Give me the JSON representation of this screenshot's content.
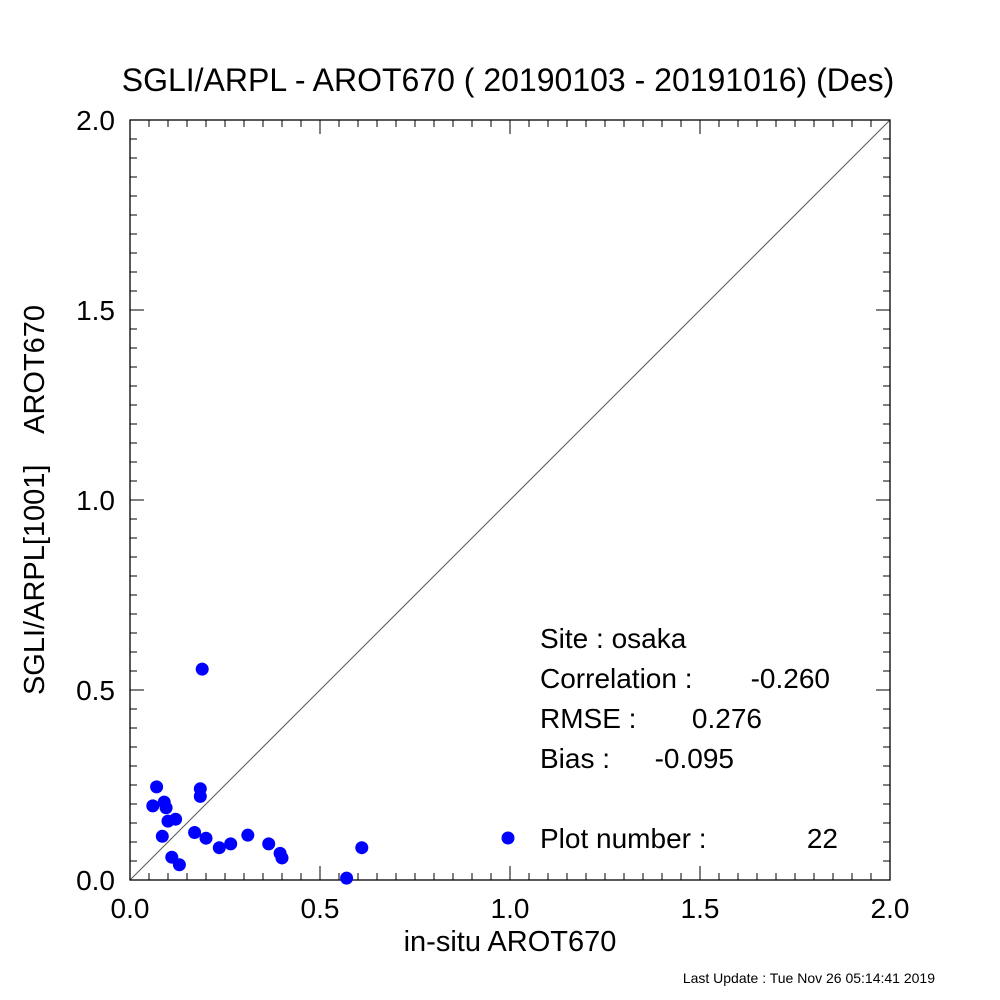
{
  "chart_data": {
    "type": "scatter",
    "title": "SGLI/ARPL - AROT670 ( 20190103 - 20191016) (Des)",
    "xlabel": "in-situ AROT670",
    "ylabel": "SGLI/ARPL[1001]    AROT670",
    "xlim": [
      0.0,
      2.0
    ],
    "ylim": [
      0.0,
      2.0
    ],
    "x_ticks": [
      "0.0",
      "0.5",
      "1.0",
      "1.5",
      "2.0"
    ],
    "y_ticks": [
      "0.0",
      "0.5",
      "1.0",
      "1.5",
      "2.0"
    ],
    "grid": false,
    "reference_line": "1:1",
    "marker_color": "#0000ff",
    "series": [
      {
        "points": [
          {
            "x": 0.06,
            "y": 0.195
          },
          {
            "x": 0.07,
            "y": 0.245
          },
          {
            "x": 0.09,
            "y": 0.205
          },
          {
            "x": 0.095,
            "y": 0.19
          },
          {
            "x": 0.085,
            "y": 0.115
          },
          {
            "x": 0.1,
            "y": 0.155
          },
          {
            "x": 0.12,
            "y": 0.16
          },
          {
            "x": 0.11,
            "y": 0.06
          },
          {
            "x": 0.13,
            "y": 0.04
          },
          {
            "x": 0.17,
            "y": 0.125
          },
          {
            "x": 0.185,
            "y": 0.24
          },
          {
            "x": 0.185,
            "y": 0.22
          },
          {
            "x": 0.19,
            "y": 0.555
          },
          {
            "x": 0.2,
            "y": 0.11
          },
          {
            "x": 0.235,
            "y": 0.085
          },
          {
            "x": 0.265,
            "y": 0.095
          },
          {
            "x": 0.31,
            "y": 0.118
          },
          {
            "x": 0.365,
            "y": 0.095
          },
          {
            "x": 0.395,
            "y": 0.07
          },
          {
            "x": 0.4,
            "y": 0.058
          },
          {
            "x": 0.61,
            "y": 0.085
          },
          {
            "x": 0.57,
            "y": 0.005
          }
        ]
      }
    ],
    "annotations": {
      "site": "Site : osaka",
      "correlation_label": "Correlation :",
      "correlation_value": "-0.260",
      "rmse_label": "RMSE :",
      "rmse_value": "0.276",
      "bias_label": "Bias :",
      "bias_value": "-0.095",
      "plot_number_label": "Plot number :",
      "plot_number_value": "22"
    },
    "footer": "Last Update : Tue Nov 26 05:14:41 2019"
  }
}
